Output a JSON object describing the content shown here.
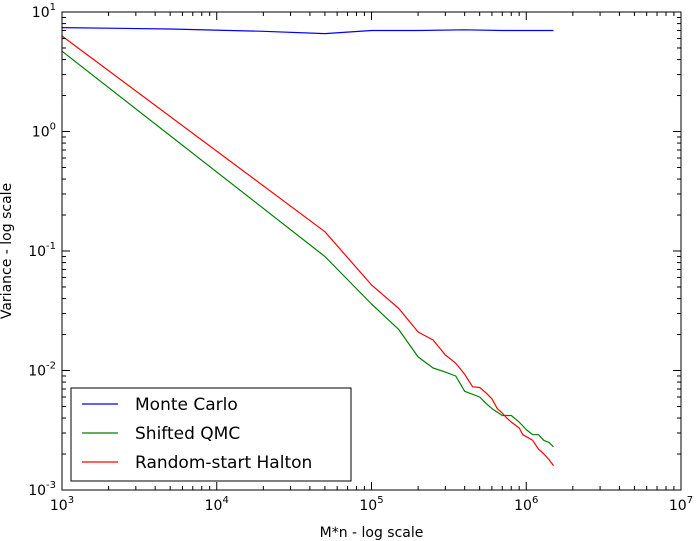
{
  "chart_data": {
    "type": "line",
    "title": "",
    "xlabel": "M*n - log scale",
    "ylabel": "Variance - log scale",
    "xscale": "log",
    "yscale": "log",
    "xlim": [
      1000,
      10000000
    ],
    "ylim": [
      0.001,
      10
    ],
    "grid": false,
    "legend_position": "lower-left",
    "x_ticks": [
      {
        "base": "10",
        "exp": "3",
        "value": 1000
      },
      {
        "base": "10",
        "exp": "4",
        "value": 10000
      },
      {
        "base": "10",
        "exp": "5",
        "value": 100000
      },
      {
        "base": "10",
        "exp": "6",
        "value": 1000000
      },
      {
        "base": "10",
        "exp": "7",
        "value": 10000000
      }
    ],
    "y_ticks": [
      {
        "base": "10",
        "exp": "-3",
        "value": 0.001
      },
      {
        "base": "10",
        "exp": "-2",
        "value": 0.01
      },
      {
        "base": "10",
        "exp": "-1",
        "value": 0.1
      },
      {
        "base": "10",
        "exp": "0",
        "value": 1
      },
      {
        "base": "10",
        "exp": "1",
        "value": 10
      }
    ],
    "series": [
      {
        "name": "Monte Carlo",
        "color": "#0000ff",
        "x": [
          1000,
          5000,
          20000,
          50000,
          100000,
          200000,
          400000,
          700000,
          1000000,
          1500000
        ],
        "y": [
          7.4,
          7.2,
          6.9,
          6.6,
          7.0,
          7.0,
          7.1,
          7.0,
          7.0,
          7.0
        ]
      },
      {
        "name": "Shifted QMC",
        "color": "#008000",
        "x": [
          1000,
          50000,
          100000,
          150000,
          200000,
          250000,
          300000,
          350000,
          400000,
          500000,
          550000,
          600000,
          700000,
          800000,
          900000,
          1000000,
          1100000,
          1200000,
          1300000,
          1400000,
          1500000
        ],
        "y": [
          4.7,
          0.09,
          0.036,
          0.022,
          0.013,
          0.0105,
          0.0097,
          0.009,
          0.0067,
          0.006,
          0.0053,
          0.0048,
          0.0042,
          0.0042,
          0.0037,
          0.0032,
          0.0029,
          0.0029,
          0.0026,
          0.0025,
          0.0023
        ]
      },
      {
        "name": "Random-start Halton",
        "color": "#ff0000",
        "x": [
          1000,
          50000,
          100000,
          150000,
          200000,
          250000,
          300000,
          350000,
          400000,
          450000,
          500000,
          550000,
          600000,
          650000,
          700000,
          750000,
          800000,
          850000,
          900000,
          950000,
          1000000,
          1100000,
          1200000,
          1300000,
          1400000,
          1500000
        ],
        "y": [
          6.3,
          0.145,
          0.052,
          0.033,
          0.021,
          0.018,
          0.0135,
          0.0115,
          0.0093,
          0.0073,
          0.0072,
          0.0065,
          0.0058,
          0.0048,
          0.0044,
          0.004,
          0.0037,
          0.0035,
          0.0033,
          0.0029,
          0.0028,
          0.0026,
          0.0022,
          0.002,
          0.0018,
          0.0016
        ]
      }
    ]
  }
}
